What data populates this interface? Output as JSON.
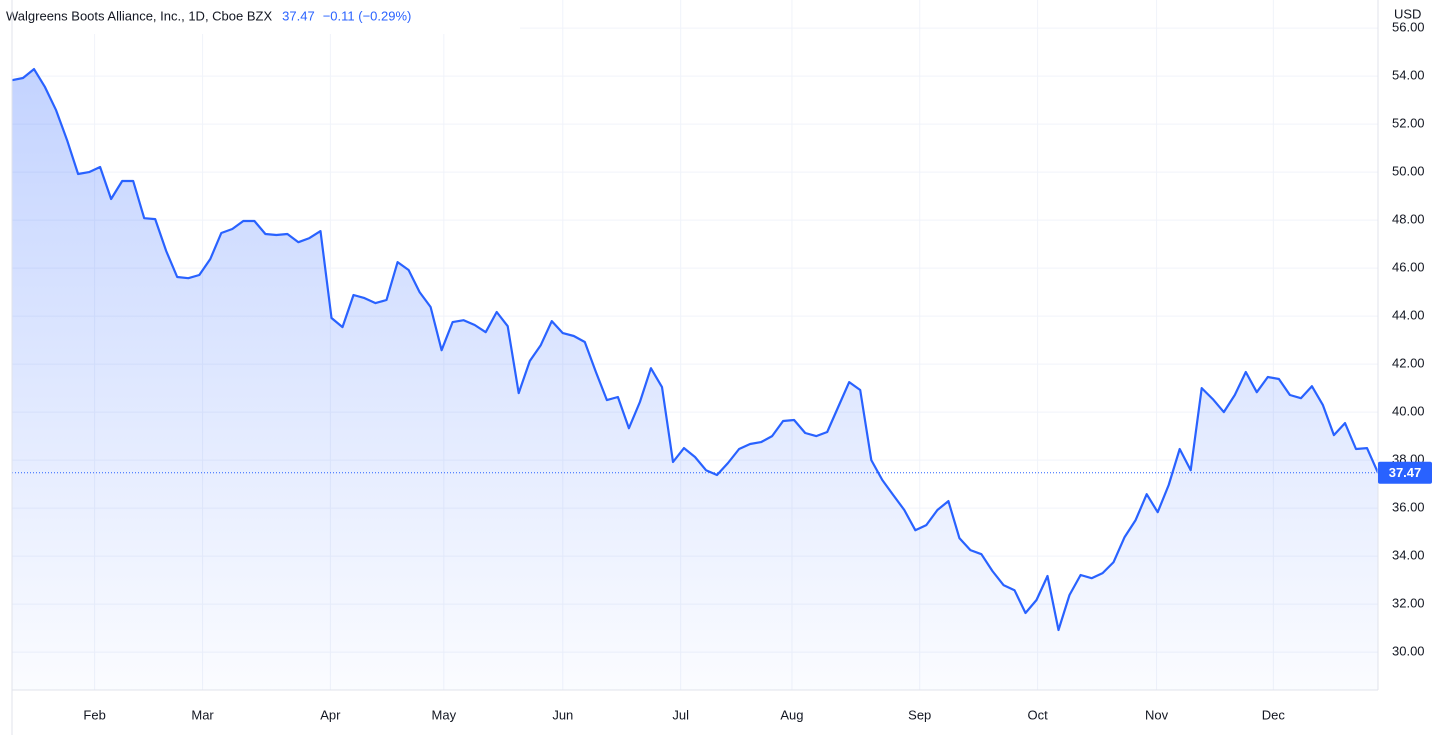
{
  "chart_data": {
    "type": "line",
    "title": "Walgreens Boots Alliance, Inc., 1D, Cboe BZX",
    "last_value": 37.47,
    "change": "−0.11 (−0.29%)",
    "currency": "USD",
    "color": "#2962ff",
    "values": [
      53.83,
      53.92,
      54.29,
      53.54,
      52.58,
      51.33,
      49.92,
      50.0,
      50.21,
      48.88,
      49.63,
      49.63,
      48.08,
      48.04,
      46.71,
      45.63,
      45.58,
      45.71,
      46.38,
      47.46,
      47.63,
      47.96,
      47.96,
      47.42,
      47.38,
      47.42,
      47.08,
      47.25,
      47.54,
      43.92,
      43.54,
      44.88,
      44.75,
      44.54,
      44.67,
      46.25,
      45.92,
      45.0,
      44.38,
      42.58,
      43.75,
      43.83,
      43.63,
      43.33,
      44.17,
      43.58,
      40.79,
      42.13,
      42.79,
      43.79,
      43.29,
      43.17,
      42.92,
      41.67,
      40.5,
      40.63,
      39.33,
      40.42,
      41.83,
      41.04,
      37.92,
      38.5,
      38.13,
      37.58,
      37.38,
      37.88,
      38.46,
      38.67,
      38.75,
      39.0,
      39.63,
      39.67,
      39.13,
      39.0,
      39.17,
      40.21,
      41.25,
      40.92,
      38.0,
      37.17,
      36.54,
      35.92,
      35.08,
      35.29,
      35.92,
      36.29,
      34.75,
      34.25,
      34.08,
      33.38,
      32.79,
      32.58,
      31.63,
      32.17,
      33.17,
      30.92,
      32.38,
      33.21,
      33.08,
      33.29,
      33.75,
      34.79,
      35.5,
      36.58,
      35.83,
      36.96,
      38.46,
      37.58,
      41.0,
      40.54,
      40.0,
      40.71,
      41.67,
      40.83,
      41.46,
      41.38,
      40.71,
      40.58,
      41.08,
      40.29,
      39.04,
      39.54,
      38.46,
      38.5,
      37.47
    ],
    "xlim": [
      0,
      124
    ],
    "xticks": [
      {
        "value": 7.5,
        "label": "Feb"
      },
      {
        "value": 17.3,
        "label": "Mar"
      },
      {
        "value": 28.9,
        "label": "Apr"
      },
      {
        "value": 39.2,
        "label": "May"
      },
      {
        "value": 50,
        "label": "Jun"
      },
      {
        "value": 60.7,
        "label": "Jul"
      },
      {
        "value": 70.8,
        "label": "Aug"
      },
      {
        "value": 82.4,
        "label": "Sep"
      },
      {
        "value": 93.1,
        "label": "Oct"
      },
      {
        "value": 103.9,
        "label": "Nov"
      },
      {
        "value": 114.5,
        "label": "Dec"
      }
    ],
    "ylim": [
      28.42,
      57.17
    ],
    "yticks": [
      {
        "value": 30,
        "label": "30.00"
      },
      {
        "value": 32,
        "label": "32.00"
      },
      {
        "value": 34,
        "label": "34.00"
      },
      {
        "value": 36,
        "label": "36.00"
      },
      {
        "value": 38,
        "label": "38.00"
      },
      {
        "value": 40,
        "label": "40.00"
      },
      {
        "value": 42,
        "label": "42.00"
      },
      {
        "value": 44,
        "label": "44.00"
      },
      {
        "value": 46,
        "label": "46.00"
      },
      {
        "value": 48,
        "label": "48.00"
      },
      {
        "value": 50,
        "label": "50.00"
      },
      {
        "value": 52,
        "label": "52.00"
      },
      {
        "value": 54,
        "label": "54.00"
      },
      {
        "value": 56,
        "label": "56.00"
      }
    ],
    "grid": true
  }
}
